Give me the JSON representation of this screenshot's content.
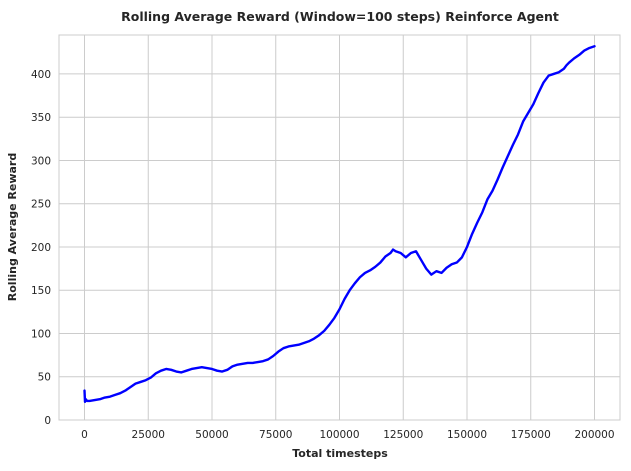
{
  "chart_data": {
    "type": "line",
    "title": "Rolling Average Reward (Window=100 steps) Reinforce Agent",
    "xlabel": "Total timesteps",
    "ylabel": "Rolling Average Reward",
    "xlim": [
      -10000,
      210000
    ],
    "ylim": [
      0,
      445
    ],
    "xticks": [
      0,
      25000,
      50000,
      75000,
      100000,
      125000,
      150000,
      175000,
      200000
    ],
    "xtick_labels": [
      "0",
      "25000",
      "50000",
      "75000",
      "100000",
      "125000",
      "150000",
      "175000",
      "200000"
    ],
    "yticks": [
      0,
      50,
      100,
      150,
      200,
      250,
      300,
      350,
      400
    ],
    "ytick_labels": [
      "0",
      "50",
      "100",
      "150",
      "200",
      "250",
      "300",
      "350",
      "400"
    ],
    "grid": true,
    "legend": "none",
    "series_color": "#0000ff",
    "series": [
      {
        "x": [
          0,
          200,
          500,
          1000,
          2000,
          4000,
          6000,
          8000,
          10000,
          12000,
          14000,
          16000,
          18000,
          20000,
          22000,
          24000,
          26000,
          28000,
          30000,
          32000,
          34000,
          36000,
          38000,
          40000,
          42000,
          44000,
          46000,
          48000,
          50000,
          52000,
          54000,
          56000,
          58000,
          60000,
          62000,
          64000,
          66000,
          68000,
          70000,
          72000,
          74000,
          76000,
          78000,
          80000,
          82000,
          84000,
          86000,
          88000,
          90000,
          92000,
          94000,
          96000,
          98000,
          100000,
          102000,
          104000,
          106000,
          108000,
          110000,
          112000,
          114000,
          116000,
          118000,
          120000,
          121000,
          122000,
          124000,
          126000,
          128000,
          130000,
          132000,
          134000,
          136000,
          138000,
          140000,
          142000,
          144000,
          146000,
          148000,
          150000,
          152000,
          154000,
          156000,
          158000,
          160000,
          162000,
          164000,
          166000,
          168000,
          170000,
          172000,
          174000,
          176000,
          178000,
          180000,
          182000,
          184000,
          186000,
          188000,
          189000,
          190000,
          192000,
          194000,
          196000,
          198000,
          200000
        ],
        "y": [
          34,
          21,
          24,
          22,
          22,
          23,
          24,
          26,
          27,
          29,
          31,
          34,
          38,
          42,
          44,
          46,
          49,
          54,
          57,
          59,
          58,
          56,
          55,
          57,
          59,
          60,
          61,
          60,
          59,
          57,
          56,
          58,
          62,
          64,
          65,
          66,
          66,
          67,
          68,
          70,
          74,
          79,
          83,
          85,
          86,
          87,
          89,
          91,
          94,
          98,
          103,
          110,
          118,
          128,
          140,
          150,
          158,
          165,
          170,
          173,
          177,
          182,
          189,
          193,
          197,
          195,
          193,
          188,
          193,
          195,
          185,
          175,
          168,
          172,
          170,
          176,
          180,
          182,
          188,
          200,
          215,
          228,
          240,
          255,
          265,
          278,
          292,
          305,
          318,
          330,
          345,
          355,
          365,
          378,
          390,
          398,
          400,
          402,
          406,
          410,
          413,
          418,
          422,
          427,
          430,
          432
        ]
      }
    ]
  }
}
